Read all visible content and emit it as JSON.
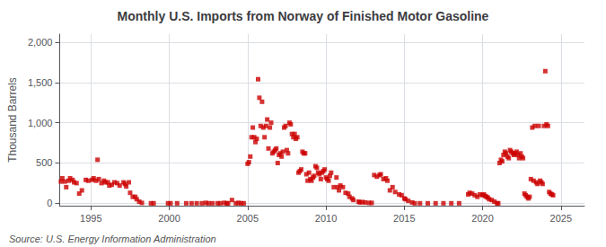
{
  "chart_data": {
    "type": "scatter",
    "title": "Monthly U.S. Imports from Norway of Finished Motor Gasoline",
    "ylabel": "Thousand Barrels",
    "annotations": [
      "Source: U.S. Energy Information Administration"
    ],
    "xlim": [
      1993.0,
      2026.5
    ],
    "ylim": [
      -30,
      2100
    ],
    "xticks": [
      1995,
      2000,
      2005,
      2010,
      2015,
      2020,
      2025
    ],
    "yticks": [
      0,
      500,
      {
        "value": 1000,
        "label": "1,000"
      },
      {
        "value": 1500,
        "label": "1,500"
      },
      {
        "value": 2000,
        "label": "2,000"
      }
    ],
    "grid": true,
    "color": "#CC0000",
    "marker": "square",
    "x": [
      1993.08,
      1993.17,
      1993.33,
      1993.42,
      1993.58,
      1993.67,
      1993.83,
      1993.92,
      1994.08,
      1994.25,
      1994.42,
      1994.67,
      1994.83,
      1995.08,
      1995.17,
      1995.33,
      1995.42,
      1995.5,
      1995.67,
      1995.83,
      1995.92,
      1996.08,
      1996.17,
      1996.33,
      1996.5,
      1996.67,
      1996.83,
      1997.08,
      1997.17,
      1997.25,
      1997.42,
      1997.5,
      1997.67,
      1997.83,
      1997.92,
      1998.08,
      1998.25,
      1998.83,
      1999.0,
      1999.92,
      2000.08,
      2000.5,
      2001.08,
      2001.42,
      2001.75,
      2002.08,
      2002.33,
      2002.5,
      2002.75,
      2003.08,
      2003.25,
      2003.5,
      2003.67,
      2003.75,
      2004.0,
      2004.25,
      2004.42,
      2004.58,
      2004.75,
      2005.0,
      2005.08,
      2005.17,
      2005.25,
      2005.33,
      2005.42,
      2005.5,
      2005.58,
      2005.67,
      2005.75,
      2005.83,
      2005.92,
      2006.0,
      2006.08,
      2006.17,
      2006.25,
      2006.33,
      2006.42,
      2006.5,
      2006.58,
      2006.67,
      2006.75,
      2006.83,
      2006.92,
      2007.0,
      2007.08,
      2007.17,
      2007.25,
      2007.33,
      2007.42,
      2007.5,
      2007.58,
      2007.67,
      2007.75,
      2007.83,
      2007.92,
      2008.0,
      2008.08,
      2008.17,
      2008.25,
      2008.33,
      2008.42,
      2008.5,
      2008.58,
      2008.67,
      2008.75,
      2008.83,
      2008.92,
      2009.0,
      2009.08,
      2009.17,
      2009.25,
      2009.33,
      2009.42,
      2009.5,
      2009.58,
      2009.67,
      2009.75,
      2009.83,
      2009.92,
      2010.0,
      2010.08,
      2010.17,
      2010.25,
      2010.33,
      2010.5,
      2010.67,
      2010.75,
      2010.83,
      2010.92,
      2011.08,
      2011.25,
      2011.42,
      2011.5,
      2011.67,
      2011.75,
      2012.08,
      2012.17,
      2012.33,
      2012.5,
      2012.75,
      2012.92,
      2013.08,
      2013.25,
      2013.42,
      2013.5,
      2013.67,
      2013.83,
      2013.92,
      2014.08,
      2014.25,
      2014.42,
      2014.67,
      2014.83,
      2015.0,
      2015.08,
      2015.25,
      2015.5,
      2015.67,
      2016.0,
      2016.5,
      2017.0,
      2017.5,
      2018.0,
      2018.5,
      2019.08,
      2019.17,
      2019.33,
      2019.5,
      2019.67,
      2019.83,
      2020.0,
      2020.08,
      2020.17,
      2020.25,
      2020.33,
      2020.42,
      2020.58,
      2020.75,
      2020.92,
      2021.0,
      2021.08,
      2021.17,
      2021.25,
      2021.33,
      2021.42,
      2021.5,
      2021.58,
      2021.67,
      2021.75,
      2021.83,
      2021.92,
      2022.0,
      2022.08,
      2022.17,
      2022.25,
      2022.33,
      2022.42,
      2022.5,
      2022.58,
      2022.67,
      2022.75,
      2022.83,
      2022.92,
      2023.0,
      2023.08,
      2023.17,
      2023.25,
      2023.33,
      2023.42,
      2023.5,
      2023.58,
      2023.67,
      2023.75,
      2023.83,
      2023.92,
      2024.0,
      2024.08,
      2024.17,
      2024.25,
      2024.33,
      2024.42,
      2024.5
    ],
    "values": [
      270,
      310,
      270,
      200,
      280,
      310,
      290,
      260,
      250,
      120,
      160,
      290,
      280,
      290,
      310,
      280,
      540,
      300,
      250,
      280,
      260,
      260,
      220,
      230,
      260,
      250,
      220,
      260,
      240,
      210,
      260,
      130,
      80,
      80,
      50,
      20,
      5,
      0,
      0,
      0,
      0,
      0,
      0,
      0,
      0,
      0,
      5,
      0,
      0,
      0,
      0,
      5,
      0,
      0,
      40,
      0,
      5,
      0,
      0,
      490,
      510,
      580,
      820,
      940,
      820,
      760,
      800,
      1540,
      1310,
      960,
      1260,
      940,
      820,
      960,
      1040,
      680,
      940,
      1000,
      620,
      640,
      660,
      680,
      500,
      600,
      620,
      580,
      640,
      940,
      960,
      660,
      620,
      1000,
      980,
      860,
      820,
      860,
      800,
      820,
      380,
      400,
      420,
      640,
      620,
      620,
      360,
      280,
      380,
      300,
      280,
      320,
      340,
      460,
      440,
      380,
      360,
      300,
      380,
      400,
      420,
      320,
      300,
      280,
      340,
      380,
      200,
      320,
      200,
      160,
      220,
      200,
      130,
      120,
      80,
      60,
      40,
      20,
      10,
      15,
      10,
      5,
      5,
      350,
      330,
      350,
      360,
      300,
      310,
      280,
      160,
      200,
      140,
      110,
      100,
      60,
      50,
      30,
      10,
      0,
      0,
      0,
      0,
      0,
      0,
      0,
      110,
      130,
      120,
      100,
      80,
      110,
      100,
      110,
      90,
      80,
      70,
      50,
      40,
      20,
      0,
      0,
      500,
      540,
      520,
      600,
      640,
      620,
      580,
      560,
      660,
      640,
      620,
      600,
      620,
      640,
      600,
      560,
      620,
      580,
      560,
      120,
      100,
      80,
      60,
      80,
      300,
      940,
      280,
      960,
      260,
      240,
      960,
      280,
      260,
      240,
      960,
      1640,
      980,
      960,
      140,
      120,
      110,
      100
    ]
  }
}
